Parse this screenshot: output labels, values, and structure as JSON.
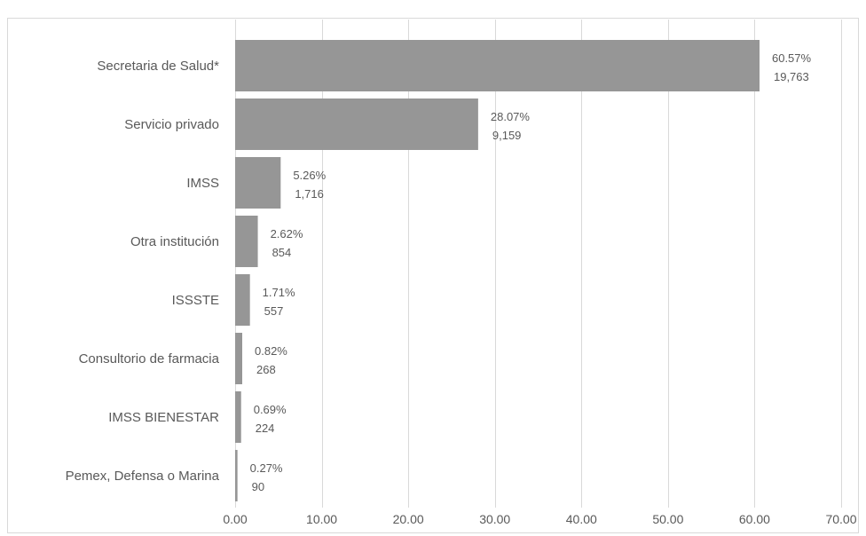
{
  "chart_data": {
    "type": "bar",
    "orientation": "horizontal",
    "categories": [
      "Secretaria de Salud*",
      "Servicio privado",
      "IMSS",
      "Otra institución",
      "ISSSTE",
      "Consultorio de farmacia",
      "IMSS BIENESTAR",
      "Pemex, Defensa o Marina"
    ],
    "series": [
      {
        "values": [
          60.57,
          28.07,
          5.26,
          2.62,
          1.71,
          0.82,
          0.69,
          0.27
        ],
        "counts": [
          "19,763",
          "9,159",
          "1,716",
          "854",
          "557",
          "268",
          "224",
          "90"
        ],
        "percent_labels": [
          "60.57%",
          "28.07%",
          "5.26%",
          "2.62%",
          "1.71%",
          "0.82%",
          "0.69%",
          "0.27%"
        ]
      }
    ],
    "xlim": [
      0,
      70
    ],
    "x_ticks": [
      0,
      10,
      20,
      30,
      40,
      50,
      60,
      70
    ],
    "x_tick_labels": [
      "0.00",
      "10.00",
      "20.00",
      "30.00",
      "40.00",
      "50.00",
      "60.00",
      "70.00"
    ],
    "grid": true,
    "bar_color": "#969696",
    "grid_color": "#d9d9d9",
    "text_color": "#595959",
    "title": "",
    "xlabel": "",
    "ylabel": ""
  }
}
